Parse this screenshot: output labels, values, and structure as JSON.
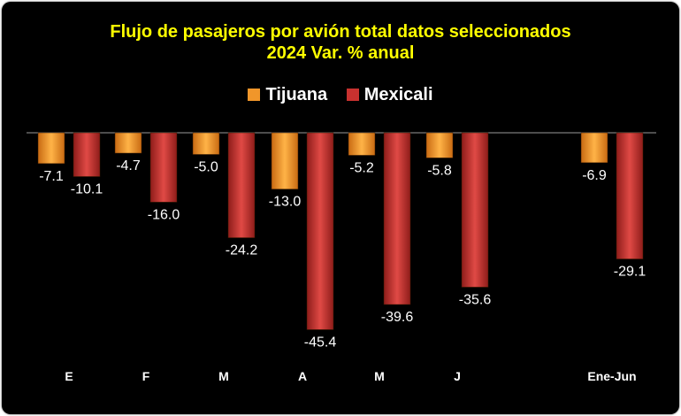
{
  "chart_data": {
    "type": "bar",
    "title": "Flujo de pasajeros por avión total datos seleccionados",
    "subtitle": "2024 Var. % anual",
    "categories": [
      "E",
      "F",
      "M",
      "A",
      "M",
      "J",
      "Ene-Jun"
    ],
    "series": [
      {
        "name": "Tijuana",
        "color": "#f0962a",
        "values": [
          -7.1,
          -4.7,
          -5.0,
          -13.0,
          -5.2,
          -5.8,
          -6.9
        ]
      },
      {
        "name": "Mexicali",
        "color": "#c8312f",
        "values": [
          -10.1,
          -16.0,
          -24.2,
          -45.4,
          -39.6,
          -35.6,
          -29.1
        ]
      }
    ],
    "ylim": [
      -45.4,
      0
    ],
    "legend_position": "top",
    "grid": false
  }
}
